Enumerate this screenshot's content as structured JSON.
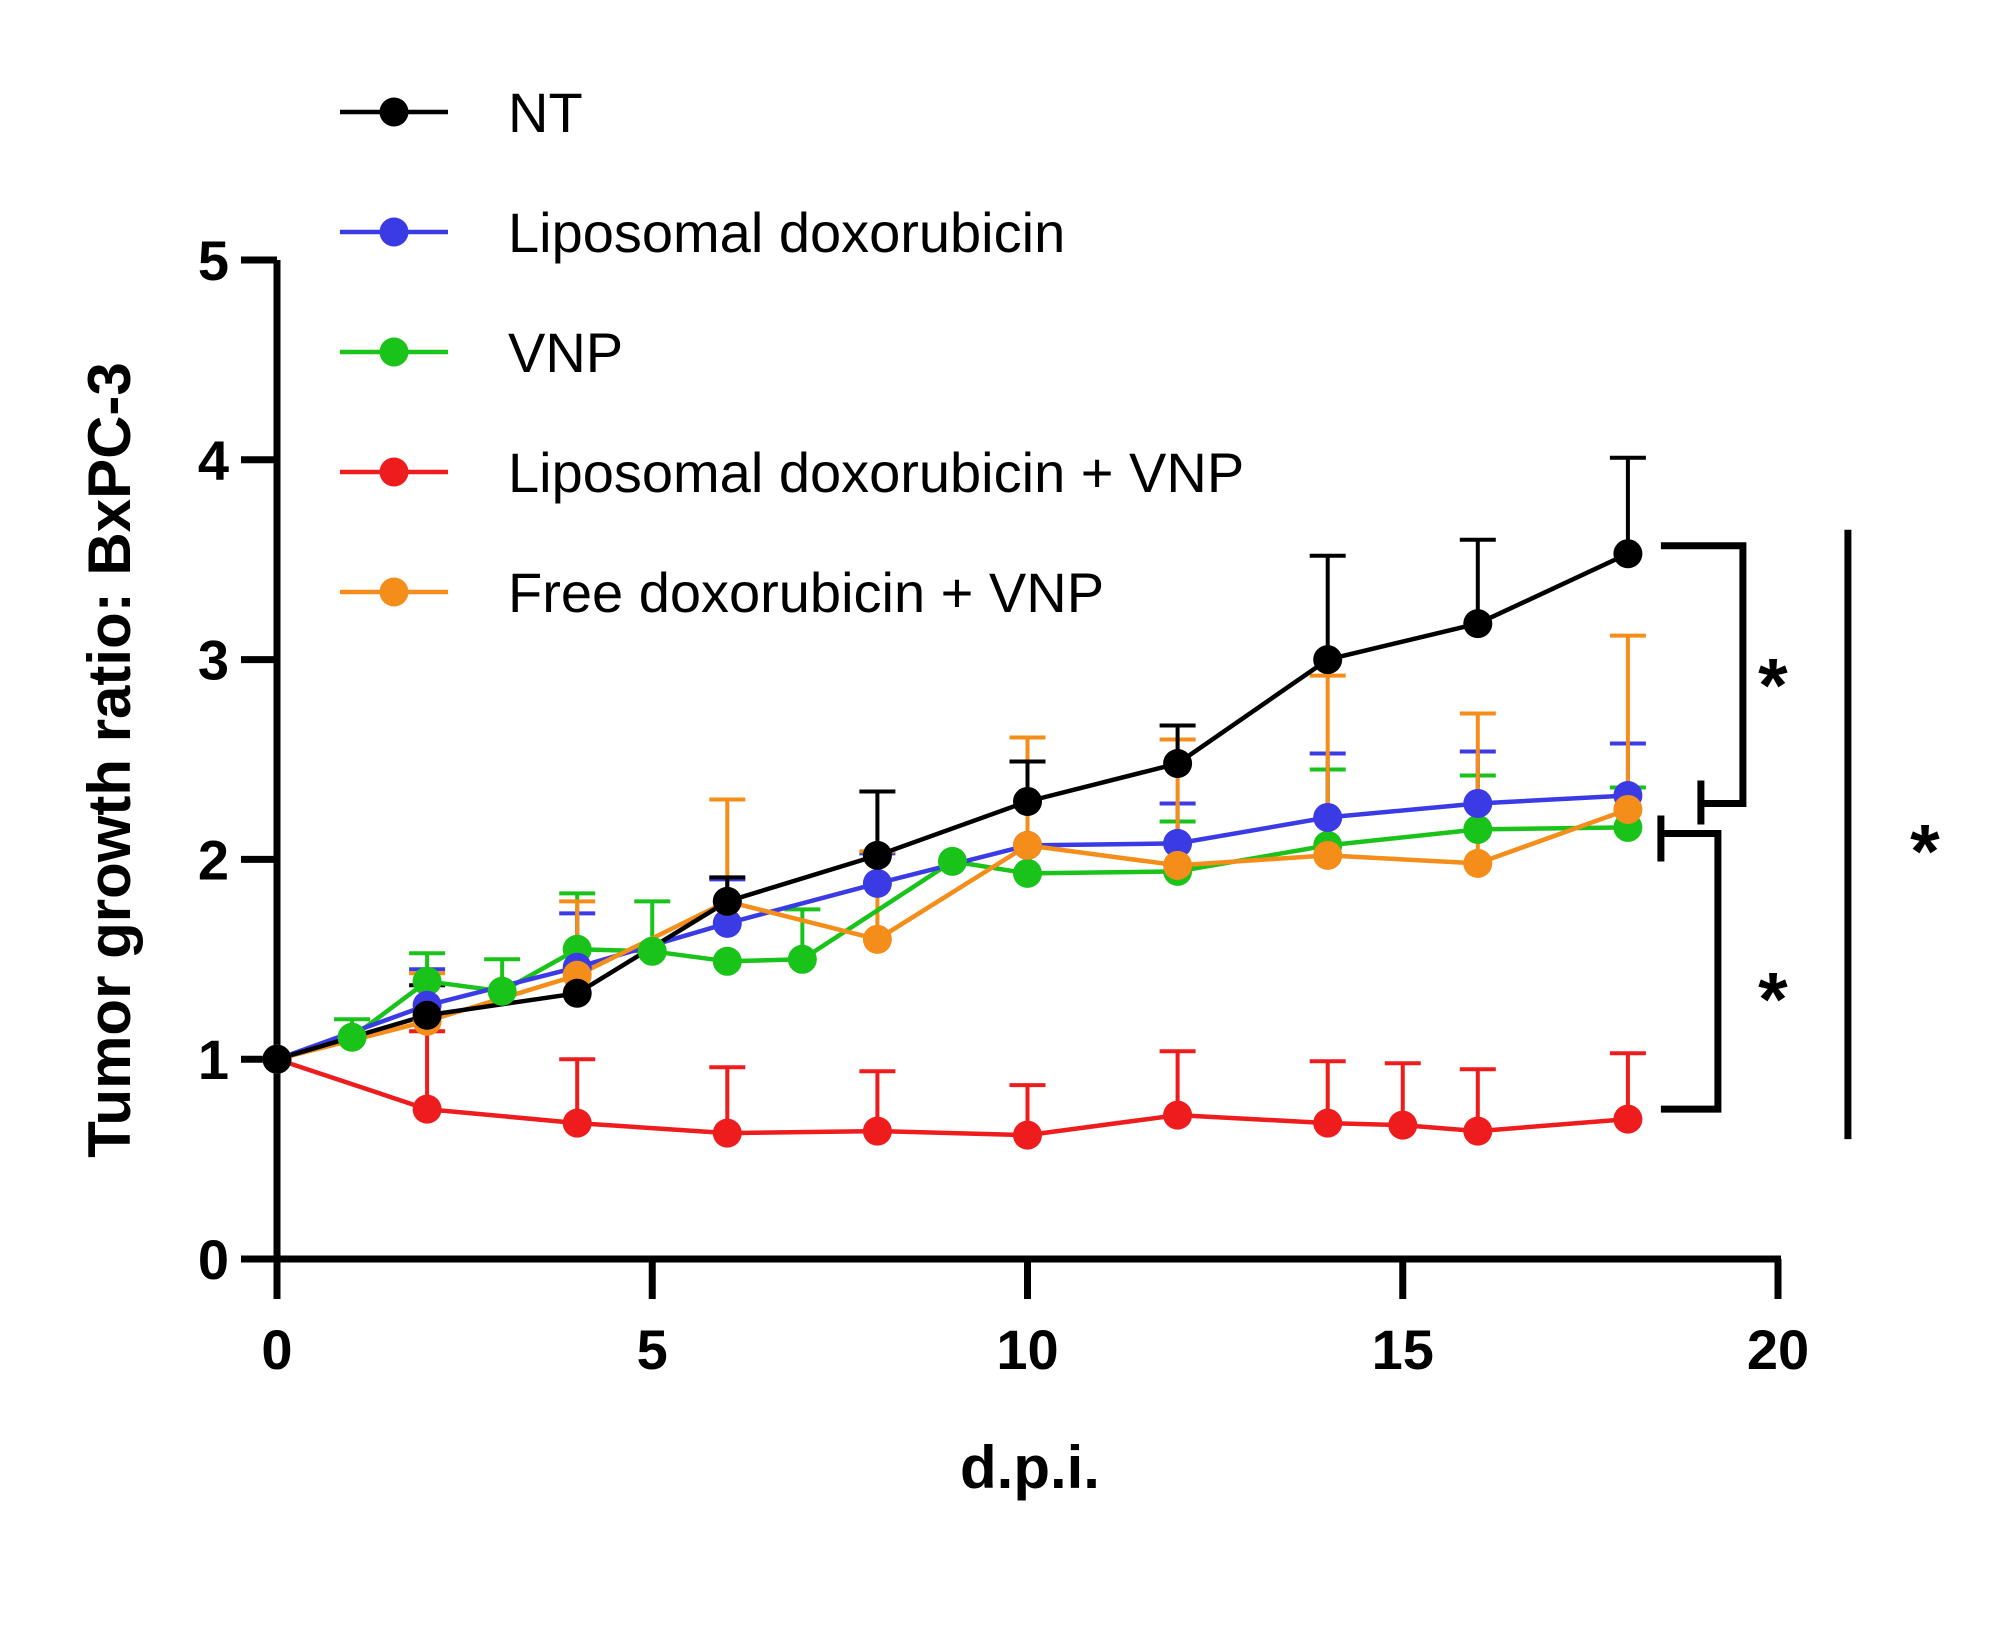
{
  "chart_data": {
    "type": "line",
    "title": "",
    "xlabel": "d.p.i.",
    "ylabel": "Tumor growth ratio: BxPC-3",
    "xlim": [
      0,
      20
    ],
    "ylim": [
      0,
      5
    ],
    "xticks": [
      "0",
      "5",
      "10",
      "15",
      "20"
    ],
    "yticks": [
      "0",
      "1",
      "2",
      "3",
      "4",
      "5"
    ],
    "legend_position": "top-left",
    "grid": false,
    "series": [
      {
        "name": "NT",
        "color": "#000000",
        "x": [
          0,
          2,
          4,
          6,
          8,
          10,
          12,
          14,
          16,
          18
        ],
        "y": [
          1.0,
          1.22,
          1.33,
          1.79,
          2.02,
          2.29,
          2.48,
          3.0,
          3.18,
          3.53
        ],
        "err": [
          0,
          0.15,
          0,
          0.12,
          0.32,
          0.2,
          0.19,
          0.52,
          0.42,
          0.48
        ]
      },
      {
        "name": "Liposomal doxorubicin",
        "color": "#3b3be6",
        "x": [
          0,
          2,
          4,
          6,
          8,
          10,
          12,
          14,
          16,
          18
        ],
        "y": [
          1.0,
          1.27,
          1.46,
          1.68,
          1.88,
          2.07,
          2.08,
          2.21,
          2.28,
          2.32
        ],
        "err": [
          0,
          0.18,
          0.27,
          0.22,
          0.15,
          0.42,
          0.2,
          0.32,
          0.26,
          0.26
        ]
      },
      {
        "name": "VNP",
        "color": "#1ac31a",
        "x": [
          0,
          1,
          2,
          3,
          4,
          5,
          6,
          7,
          9,
          10,
          12,
          14,
          16,
          18
        ],
        "y": [
          1.0,
          1.11,
          1.39,
          1.34,
          1.55,
          1.54,
          1.49,
          1.5,
          1.99,
          1.93,
          1.94,
          2.07,
          2.15,
          2.16
        ],
        "err": [
          0,
          0.09,
          0.14,
          0.16,
          0.28,
          0.25,
          0,
          0.25,
          0,
          0,
          0.25,
          0.38,
          0.27,
          0.2
        ]
      },
      {
        "name": "Liposomal doxorubicin + VNP",
        "color": "#ee1c1c",
        "x": [
          0,
          2,
          4,
          6,
          8,
          10,
          12,
          14,
          15,
          16,
          18
        ],
        "y": [
          1.0,
          0.75,
          0.68,
          0.63,
          0.64,
          0.62,
          0.72,
          0.68,
          0.67,
          0.64,
          0.7
        ],
        "err": [
          0,
          0.39,
          0.32,
          0.33,
          0.3,
          0.25,
          0.32,
          0.31,
          0.31,
          0.31,
          0.33
        ]
      },
      {
        "name": "Free doxorubicin + VNP",
        "color": "#f48d1a",
        "x": [
          0,
          2,
          4,
          6,
          8,
          10,
          12,
          14,
          16,
          18
        ],
        "y": [
          1.0,
          1.19,
          1.42,
          1.79,
          1.6,
          2.07,
          1.97,
          2.02,
          1.98,
          2.25
        ],
        "err": [
          0,
          0.24,
          0.37,
          0.51,
          0.44,
          0.54,
          0.63,
          0.9,
          0.75,
          0.87
        ]
      }
    ],
    "annotations": [
      {
        "text": "*",
        "between": [
          "NT",
          "Liposomal doxorubicin"
        ]
      },
      {
        "text": "*",
        "between": [
          "Liposomal doxorubicin",
          "Liposomal doxorubicin + VNP"
        ]
      },
      {
        "text": "*",
        "between": [
          "NT",
          "Liposomal doxorubicin + VNP"
        ]
      }
    ]
  }
}
